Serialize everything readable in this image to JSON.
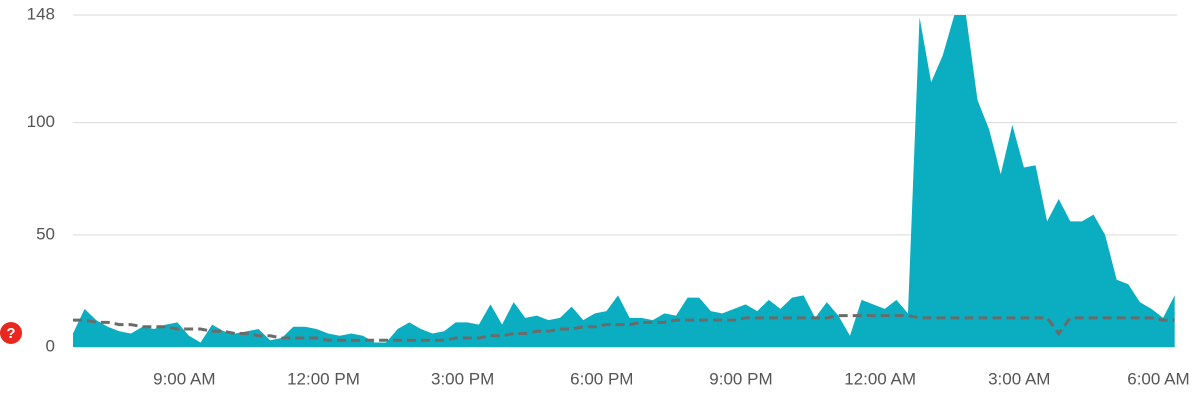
{
  "badge": "?",
  "chart_data": {
    "type": "area",
    "x": [
      6.6,
      6.85,
      7.1,
      7.35,
      7.6,
      7.85,
      8.1,
      8.35,
      8.6,
      8.85,
      9.1,
      9.35,
      9.6,
      9.85,
      10.1,
      10.35,
      10.6,
      10.85,
      11.1,
      11.35,
      11.6,
      11.85,
      12.1,
      12.35,
      12.6,
      12.85,
      13.1,
      13.35,
      13.6,
      13.85,
      14.1,
      14.35,
      14.6,
      14.85,
      15.1,
      15.35,
      15.6,
      15.85,
      16.1,
      16.35,
      16.6,
      16.85,
      17.1,
      17.35,
      17.6,
      17.85,
      18.1,
      18.35,
      18.6,
      18.85,
      19.1,
      19.35,
      19.6,
      19.85,
      20.1,
      20.35,
      20.6,
      20.85,
      21.1,
      21.35,
      21.6,
      21.85,
      22.1,
      22.35,
      22.6,
      22.85,
      23.1,
      23.35,
      23.6,
      23.85,
      24.1,
      24.35,
      24.6,
      24.85,
      25.1,
      25.35,
      25.6,
      25.85,
      26.1,
      26.35,
      26.6,
      26.85,
      27.1,
      27.35,
      27.6,
      27.85,
      28.1,
      28.35,
      28.6,
      28.85,
      29.1,
      29.35,
      29.6,
      29.85,
      30.1,
      30.35
    ],
    "series": [
      {
        "color": "#0aaec0",
        "style": "area",
        "values": [
          6,
          17,
          12,
          9,
          7,
          6,
          9,
          8,
          10,
          11,
          5,
          2,
          10,
          7,
          6,
          7,
          8,
          3,
          4,
          9,
          9,
          8,
          6,
          5,
          6,
          5,
          2,
          2,
          8,
          11,
          8,
          6,
          7,
          11,
          11,
          10,
          19,
          10,
          20,
          13,
          14,
          12,
          13,
          18,
          12,
          15,
          16,
          23,
          13,
          13,
          12,
          15,
          14,
          22,
          22,
          16,
          15,
          17,
          19,
          16,
          21,
          17,
          22,
          23,
          13,
          20,
          14,
          5,
          21,
          19,
          17,
          21,
          15,
          147,
          118,
          130,
          148,
          148,
          110,
          97,
          77,
          99,
          80,
          81,
          56,
          66,
          56,
          56,
          59,
          50,
          30,
          28,
          20,
          17,
          13,
          23
        ]
      },
      {
        "color": "#6b6b6b",
        "style": "dashed",
        "values": [
          12,
          12,
          11,
          11,
          10,
          10,
          9,
          9,
          9,
          8,
          8,
          8,
          7,
          7,
          6,
          6,
          5,
          5,
          4,
          4,
          4,
          4,
          3,
          3,
          3,
          3,
          3,
          3,
          3,
          3,
          3,
          3,
          3,
          4,
          4,
          4,
          5,
          5,
          6,
          6,
          7,
          7,
          8,
          8,
          9,
          9,
          10,
          10,
          10,
          11,
          11,
          11,
          12,
          12,
          12,
          12,
          12,
          12,
          13,
          13,
          13,
          13,
          13,
          13,
          13,
          13,
          14,
          14,
          14,
          14,
          14,
          14,
          14,
          13,
          13,
          13,
          13,
          13,
          13,
          13,
          13,
          13,
          13,
          13,
          13,
          6,
          13,
          13,
          13,
          13,
          13,
          13,
          13,
          13,
          12,
          12
        ]
      }
    ],
    "xlim": [
      6.6,
      30.4
    ],
    "xticks": [
      {
        "value": 9,
        "label": "9:00 AM"
      },
      {
        "value": 12,
        "label": "12:00 PM"
      },
      {
        "value": 15,
        "label": "3:00 PM"
      },
      {
        "value": 18,
        "label": "6:00 PM"
      },
      {
        "value": 21,
        "label": "9:00 PM"
      },
      {
        "value": 24,
        "label": "12:00 AM"
      },
      {
        "value": 27,
        "label": "3:00 AM"
      },
      {
        "value": 30,
        "label": "6:00 AM"
      }
    ],
    "ylim": [
      0,
      148
    ],
    "yticks": [
      0,
      50,
      100,
      148
    ],
    "grid": true
  }
}
